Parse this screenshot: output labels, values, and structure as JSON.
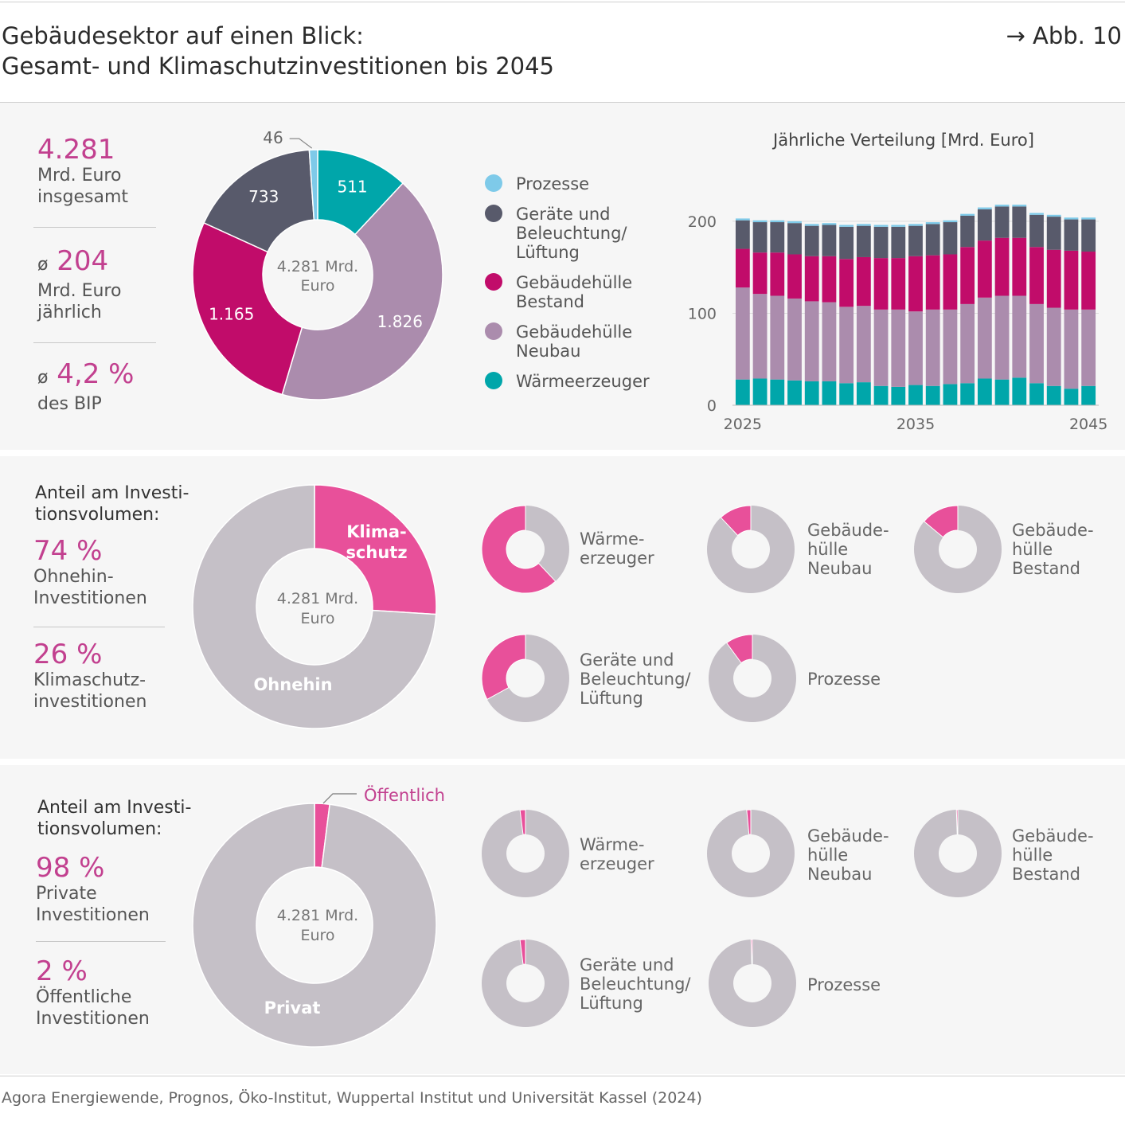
{
  "header": {
    "title_line1": "Gebäudesektor auf einen Blick:",
    "title_line2": "Gesamt- und Klimaschutzinvestitionen bis 2045",
    "figure_ref": "→ Abb. 10"
  },
  "section1": {
    "kpis": [
      {
        "prefix": "",
        "value": "4.281",
        "line1": "Mrd. Euro",
        "line2": "insgesamt"
      },
      {
        "prefix": "ø",
        "value": "204",
        "line1": "Mrd. Euro",
        "line2": "jährlich"
      },
      {
        "prefix": "ø",
        "value": "4,2 %",
        "line1": "des BIP",
        "line2": ""
      }
    ],
    "center_line1": "4.281 Mrd.",
    "center_line2": "Euro",
    "legend": [
      {
        "label": "Prozesse",
        "color": "#7ecae9"
      },
      {
        "label": "Geräte und\nBeleuchtung/\nLüftung",
        "color": "#585a6b"
      },
      {
        "label": "Gebäudehülle\nBestand",
        "color": "#c10c6a"
      },
      {
        "label": "Gebäudehülle\nNeubau",
        "color": "#ab8cad"
      },
      {
        "label": "Wärmeerzeuger",
        "color": "#00a6aa"
      }
    ]
  },
  "section2": {
    "heading": "Anteil am Investi-\ntionsvolumen:",
    "kpis": [
      {
        "value": "74 %",
        "line1": "Ohnehin-",
        "line2": "Investitionen"
      },
      {
        "value": "26 %",
        "line1": "Klimaschutz-",
        "line2": "investitionen"
      }
    ],
    "center_line1": "4.281 Mrd.",
    "center_line2": "Euro",
    "slice_labels": {
      "klimaschutz": "Klima-\nschutz",
      "ohnehin": "Ohnehin"
    },
    "small_labels": [
      "Wärme-\nerzeuger",
      "Gebäude-\nhülle\nNeubau",
      "Gebäude-\nhülle\nBestand",
      "Geräte und\nBeleuchtung/\nLüftung",
      "Prozesse"
    ]
  },
  "section3": {
    "heading": "Anteil am Investi-\ntionsvolumen:",
    "kpis": [
      {
        "value": "98 %",
        "line1": "Private",
        "line2": "Investitionen"
      },
      {
        "value": "2 %",
        "line1": "Öffentliche",
        "line2": "Investitionen"
      }
    ],
    "center_line1": "4.281 Mrd.",
    "center_line2": "Euro",
    "slice_labels": {
      "oeffentlich": "Öffentlich",
      "privat": "Privat"
    },
    "small_labels": [
      "Wärme-\nerzeuger",
      "Gebäude-\nhülle\nNeubau",
      "Gebäude-\nhülle\nBestand",
      "Geräte und\nBeleuchtung/\nLüftung",
      "Prozesse"
    ]
  },
  "source": "Agora Energiewende, Prognos, Öko-Institut, Wuppertal Institut und Universität Kassel (2024)",
  "colors": {
    "prozesse": "#7ecae9",
    "geraete": "#585a6b",
    "bestand": "#c10c6a",
    "neubau": "#ab8cad",
    "waerme": "#00a6aa",
    "klima": "#e8509a",
    "ohnehin": "#c5c0c7"
  },
  "chart_data": [
    {
      "type": "pie",
      "categories": [
        "Wärmeerzeuger",
        "Gebäudehülle Neubau",
        "Gebäudehülle Bestand",
        "Geräte und Beleuchtung/Lüftung",
        "Prozesse"
      ],
      "values": [
        511,
        1826,
        1165,
        733,
        46
      ],
      "value_labels": [
        "511",
        "1.826",
        "1.165",
        "733",
        "46"
      ]
    },
    {
      "type": "bar",
      "title": "Jährliche Verteilung [Mrd. Euro]",
      "stacked": true,
      "x": [
        2025,
        2026,
        2027,
        2028,
        2029,
        2030,
        2031,
        2032,
        2033,
        2034,
        2035,
        2036,
        2037,
        2038,
        2039,
        2040,
        2041,
        2042,
        2043,
        2044,
        2045
      ],
      "x_tick_labels": [
        "2025",
        "2035",
        "2045"
      ],
      "y_tick_labels": [
        "0",
        "100",
        "200"
      ],
      "ylim": [
        0,
        225
      ],
      "grid": true,
      "series": [
        {
          "name": "Wärmeerzeuger",
          "values": [
            28,
            29,
            28,
            27,
            26,
            26,
            24,
            25,
            21,
            20,
            22,
            21,
            23,
            24,
            29,
            28,
            30,
            24,
            21,
            18,
            21
          ]
        },
        {
          "name": "Gebäudehülle Neubau",
          "values": [
            100,
            92,
            91,
            89,
            87,
            86,
            83,
            83,
            83,
            84,
            80,
            83,
            81,
            86,
            88,
            91,
            89,
            86,
            85,
            86,
            83
          ]
        },
        {
          "name": "Gebäudehülle Bestand",
          "values": [
            42,
            45,
            47,
            48,
            49,
            50,
            52,
            53,
            56,
            56,
            60,
            59,
            60,
            62,
            62,
            63,
            63,
            62,
            63,
            64,
            63
          ]
        },
        {
          "name": "Geräte und Beleuchtung/Lüftung",
          "values": [
            31,
            33,
            33,
            34,
            33,
            34,
            35,
            34,
            34,
            34,
            33,
            34,
            35,
            34,
            34,
            34,
            34,
            35,
            36,
            34,
            35
          ]
        },
        {
          "name": "Prozesse",
          "values": [
            2,
            2,
            2,
            2,
            2,
            2,
            2,
            2,
            2,
            2,
            2,
            2,
            2,
            2,
            2,
            2,
            2,
            2,
            2,
            2,
            2
          ]
        }
      ]
    },
    {
      "type": "pie",
      "categories": [
        "Klimaschutz",
        "Ohnehin"
      ],
      "values": [
        26,
        74
      ]
    },
    {
      "type": "pie",
      "categories": [
        "Wärmeerzeuger",
        "Gebäudehülle Neubau",
        "Gebäudehülle Bestand",
        "Geräte und Beleuchtung/Lüftung",
        "Prozesse"
      ],
      "series": [
        {
          "name": "Klimaschutz",
          "values": [
            62,
            12,
            14,
            33,
            10
          ]
        }
      ]
    },
    {
      "type": "pie",
      "categories": [
        "Öffentlich",
        "Privat"
      ],
      "values": [
        2,
        98
      ]
    },
    {
      "type": "pie",
      "categories": [
        "Wärmeerzeuger",
        "Gebäudehülle Neubau",
        "Gebäudehülle Bestand",
        "Geräte und Beleuchtung/Lüftung",
        "Prozesse"
      ],
      "series": [
        {
          "name": "Öffentlich",
          "values": [
            2,
            1.5,
            0.5,
            2,
            0.5
          ]
        }
      ]
    }
  ]
}
